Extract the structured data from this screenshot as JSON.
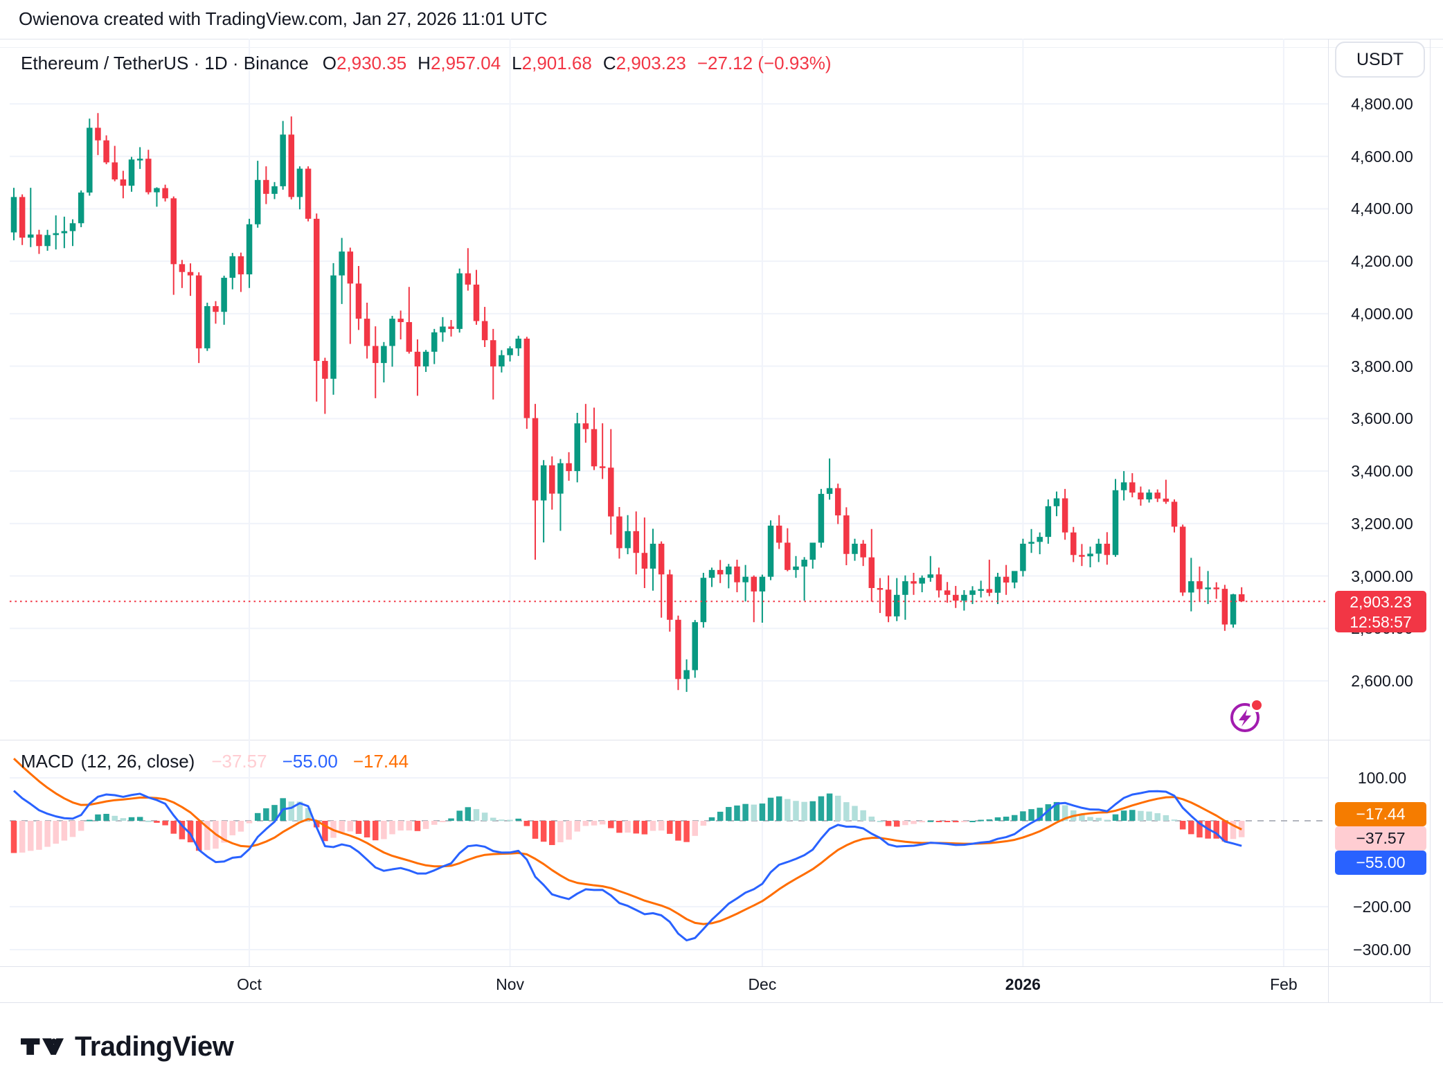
{
  "attribution": "Owienova created with TradingView.com, Jan 27, 2026 11:01 UTC",
  "legend": {
    "symbol": "Ethereum / TetherUS · 1D · Binance",
    "o_label": "O",
    "o": "2,930.35",
    "h_label": "H",
    "h": "2,957.04",
    "l_label": "L",
    "l": "2,901.68",
    "c_label": "C",
    "c": "2,903.23",
    "change": "−27.12 (−0.93%)"
  },
  "price_scale_button": "USDT",
  "price_axis": {
    "tick_labels": [
      "4,800.00",
      "4,600.00",
      "4,400.00",
      "4,200.00",
      "4,000.00",
      "3,800.00",
      "3,600.00",
      "3,400.00",
      "3,200.00",
      "3,000.00",
      "2,800.00",
      "2,600.00"
    ],
    "tick_values": [
      4800,
      4600,
      4400,
      4200,
      4000,
      3800,
      3600,
      3400,
      3200,
      3000,
      2800,
      2600
    ],
    "current_tag": {
      "price": "2,903.23",
      "countdown": "12:58:57",
      "value": 2903.23
    }
  },
  "macd_panel": {
    "title": "MACD",
    "params": "(12, 26, close)",
    "histogram_value": "−37.57",
    "macd_value": "−55.00",
    "signal_value": "−17.44",
    "axis": [
      {
        "label": "100.00",
        "value": 100
      },
      {
        "label": "−200.00",
        "value": -200
      },
      {
        "label": "−300.00",
        "value": -300
      }
    ],
    "tags": [
      {
        "label": "−17.44",
        "bg": "#F57C00",
        "fg": "#FFFFFF"
      },
      {
        "label": "−37.57",
        "bg": "#FFCDD2",
        "fg": "#131722"
      },
      {
        "label": "−55.00",
        "bg": "#2962FF",
        "fg": "#FFFFFF"
      }
    ]
  },
  "time_axis": {
    "labels": [
      {
        "text": "Oct",
        "index": 28,
        "bold": false
      },
      {
        "text": "Nov",
        "index": 59,
        "bold": false
      },
      {
        "text": "Dec",
        "index": 89,
        "bold": false
      },
      {
        "text": "2026",
        "index": 120,
        "bold": true
      },
      {
        "text": "Feb",
        "index": 151,
        "bold": false
      }
    ]
  },
  "branding": {
    "wordmark": "TradingView"
  },
  "colors": {
    "up": "#089981",
    "down": "#F23645",
    "macd_line": "#2962FF",
    "signal_line": "#FF6D00",
    "hist_up": "#26A69A",
    "hist_up_fade": "#B2DFDB",
    "hist_down": "#FF5252",
    "hist_down_fade": "#FFCDD2",
    "grid": "#F0F3FA",
    "border": "#E0E3EB",
    "text": "#131722",
    "price_line": "#F23645",
    "zero_line": "#B2B5BE",
    "flash_purple": "#A21CAF"
  },
  "chart_data": {
    "type": "candlestick",
    "title": "Ethereum / TetherUS · 1D · Binance",
    "symbol": "ETHUSDT",
    "interval": "1D",
    "start_date": "2025-09-03",
    "end_date": "2026-01-27",
    "price_ylim": [
      2380,
      5050
    ],
    "grid": true,
    "candles_ohlc": [
      [
        4310,
        4480,
        4280,
        4445
      ],
      [
        4445,
        4455,
        4262,
        4290
      ],
      [
        4290,
        4480,
        4254,
        4302
      ],
      [
        4302,
        4320,
        4228,
        4258
      ],
      [
        4258,
        4320,
        4240,
        4300
      ],
      [
        4300,
        4375,
        4245,
        4307
      ],
      [
        4307,
        4370,
        4250,
        4315
      ],
      [
        4315,
        4360,
        4258,
        4345
      ],
      [
        4345,
        4470,
        4330,
        4462
      ],
      [
        4462,
        4744,
        4450,
        4709
      ],
      [
        4709,
        4765,
        4605,
        4661
      ],
      [
        4661,
        4680,
        4570,
        4577
      ],
      [
        4577,
        4640,
        4505,
        4512
      ],
      [
        4512,
        4545,
        4440,
        4488
      ],
      [
        4488,
        4598,
        4465,
        4588
      ],
      [
        4588,
        4635,
        4552,
        4591
      ],
      [
        4591,
        4625,
        4455,
        4463
      ],
      [
        4463,
        4482,
        4408,
        4479
      ],
      [
        4479,
        4492,
        4428,
        4440
      ],
      [
        4440,
        4447,
        4072,
        4189
      ],
      [
        4189,
        4205,
        4098,
        4159
      ],
      [
        4159,
        4192,
        4068,
        4146
      ],
      [
        4146,
        4158,
        3812,
        3868
      ],
      [
        3868,
        4042,
        3858,
        4029
      ],
      [
        4029,
        4048,
        3962,
        4007
      ],
      [
        4007,
        4145,
        3958,
        4137
      ],
      [
        4137,
        4232,
        4093,
        4219
      ],
      [
        4219,
        4233,
        4083,
        4150
      ],
      [
        4150,
        4362,
        4098,
        4341
      ],
      [
        4341,
        4583,
        4328,
        4510
      ],
      [
        4510,
        4562,
        4418,
        4457
      ],
      [
        4457,
        4502,
        4437,
        4486
      ],
      [
        4486,
        4735,
        4473,
        4683
      ],
      [
        4683,
        4752,
        4436,
        4445
      ],
      [
        4445,
        4562,
        4398,
        4553
      ],
      [
        4553,
        4562,
        4352,
        4362
      ],
      [
        4362,
        4382,
        3665,
        3820
      ],
      [
        3820,
        3832,
        3618,
        3752
      ],
      [
        3752,
        4193,
        3691,
        4146
      ],
      [
        4146,
        4289,
        4037,
        4237
      ],
      [
        4237,
        4252,
        3885,
        4115
      ],
      [
        4115,
        4182,
        3938,
        3981
      ],
      [
        3981,
        4042,
        3829,
        3877
      ],
      [
        3877,
        3952,
        3678,
        3812
      ],
      [
        3812,
        3892,
        3738,
        3877
      ],
      [
        3877,
        3992,
        3798,
        3981
      ],
      [
        3981,
        4012,
        3902,
        3968
      ],
      [
        3968,
        4102,
        3848,
        3855
      ],
      [
        3855,
        3902,
        3687,
        3799
      ],
      [
        3799,
        3862,
        3778,
        3855
      ],
      [
        3855,
        3942,
        3808,
        3929
      ],
      [
        3929,
        3987,
        3893,
        3951
      ],
      [
        3951,
        3976,
        3913,
        3942
      ],
      [
        3942,
        4172,
        3928,
        4154
      ],
      [
        4154,
        4250,
        4088,
        4111
      ],
      [
        4111,
        4167,
        3958,
        3972
      ],
      [
        3972,
        4026,
        3873,
        3899
      ],
      [
        3899,
        3942,
        3673,
        3799
      ],
      [
        3799,
        3861,
        3776,
        3842
      ],
      [
        3842,
        3876,
        3818,
        3868
      ],
      [
        3868,
        3916,
        3839,
        3905
      ],
      [
        3905,
        3912,
        3561,
        3602
      ],
      [
        3602,
        3656,
        3062,
        3288
      ],
      [
        3288,
        3442,
        3128,
        3422
      ],
      [
        3422,
        3456,
        3253,
        3314
      ],
      [
        3314,
        3446,
        3172,
        3430
      ],
      [
        3430,
        3472,
        3363,
        3400
      ],
      [
        3400,
        3622,
        3357,
        3582
      ],
      [
        3582,
        3656,
        3508,
        3560
      ],
      [
        3560,
        3642,
        3404,
        3418
      ],
      [
        3418,
        3582,
        3370,
        3413
      ],
      [
        3413,
        3560,
        3158,
        3227
      ],
      [
        3227,
        3263,
        3066,
        3106
      ],
      [
        3106,
        3232,
        3083,
        3171
      ],
      [
        3171,
        3246,
        3006,
        3088
      ],
      [
        3088,
        3223,
        2954,
        3028
      ],
      [
        3028,
        3180,
        2944,
        3123
      ],
      [
        3123,
        3132,
        2841,
        3006
      ],
      [
        3006,
        3024,
        2788,
        2833
      ],
      [
        2833,
        2849,
        2565,
        2607
      ],
      [
        2607,
        2682,
        2558,
        2641
      ],
      [
        2641,
        2832,
        2612,
        2824
      ],
      [
        2824,
        3012,
        2803,
        2993
      ],
      [
        2993,
        3032,
        2958,
        3023
      ],
      [
        3023,
        3061,
        2973,
        3006
      ],
      [
        3006,
        3046,
        2953,
        3036
      ],
      [
        3036,
        3062,
        2938,
        2976
      ],
      [
        2976,
        3042,
        2903,
        2997
      ],
      [
        2997,
        3002,
        2824,
        2941
      ],
      [
        2941,
        3005,
        2822,
        2997
      ],
      [
        2997,
        3212,
        2984,
        3192
      ],
      [
        3192,
        3232,
        3103,
        3127
      ],
      [
        3127,
        3182,
        3018,
        3023
      ],
      [
        3023,
        3076,
        2993,
        3036
      ],
      [
        3036,
        3072,
        2906,
        3062
      ],
      [
        3062,
        3087,
        3028,
        3127
      ],
      [
        3127,
        3332,
        3108,
        3313
      ],
      [
        3313,
        3448,
        3291,
        3335
      ],
      [
        3335,
        3352,
        3198,
        3231
      ],
      [
        3231,
        3262,
        3041,
        3084
      ],
      [
        3084,
        3142,
        3058,
        3123
      ],
      [
        3123,
        3137,
        3038,
        3071
      ],
      [
        3071,
        3179,
        2902,
        2954
      ],
      [
        2954,
        2992,
        2859,
        2948
      ],
      [
        2948,
        3002,
        2824,
        2846
      ],
      [
        2846,
        2992,
        2828,
        2928
      ],
      [
        2928,
        3002,
        2833,
        2980
      ],
      [
        2980,
        3012,
        2928,
        2971
      ],
      [
        2971,
        3002,
        2938,
        2993
      ],
      [
        2993,
        3076,
        2978,
        3006
      ],
      [
        3006,
        3032,
        2918,
        2945
      ],
      [
        2945,
        2977,
        2898,
        2928
      ],
      [
        2928,
        2962,
        2878,
        2906
      ],
      [
        2906,
        2946,
        2868,
        2928
      ],
      [
        2928,
        2961,
        2893,
        2945
      ],
      [
        2945,
        2982,
        2918,
        2950
      ],
      [
        2950,
        3062,
        2923,
        2936
      ],
      [
        2936,
        3012,
        2893,
        2997
      ],
      [
        2997,
        3042,
        2928,
        2975
      ],
      [
        2975,
        3017,
        2953,
        3019
      ],
      [
        3019,
        3142,
        2998,
        3123
      ],
      [
        3123,
        3179,
        3088,
        3130
      ],
      [
        3130,
        3166,
        3083,
        3149
      ],
      [
        3149,
        3292,
        3123,
        3266
      ],
      [
        3266,
        3322,
        3228,
        3296
      ],
      [
        3296,
        3332,
        3138,
        3166
      ],
      [
        3166,
        3187,
        3053,
        3080
      ],
      [
        3080,
        3122,
        3038,
        3075
      ],
      [
        3075,
        3112,
        3033,
        3085
      ],
      [
        3085,
        3142,
        3053,
        3123
      ],
      [
        3123,
        3167,
        3043,
        3080
      ],
      [
        3080,
        3370,
        3073,
        3327
      ],
      [
        3327,
        3400,
        3288,
        3357
      ],
      [
        3357,
        3392,
        3300,
        3318
      ],
      [
        3318,
        3341,
        3268,
        3292
      ],
      [
        3292,
        3330,
        3280,
        3318
      ],
      [
        3318,
        3330,
        3282,
        3295
      ],
      [
        3295,
        3367,
        3275,
        3283
      ],
      [
        3283,
        3292,
        3166,
        3188
      ],
      [
        3188,
        3196,
        2924,
        2937
      ],
      [
        2937,
        3069,
        2865,
        2980
      ],
      [
        2980,
        3036,
        2902,
        2950
      ],
      [
        2950,
        3019,
        2893,
        2956
      ],
      [
        2956,
        2976,
        2913,
        2951
      ],
      [
        2951,
        2966,
        2791,
        2815
      ],
      [
        2815,
        2932,
        2803,
        2930
      ],
      [
        2930.35,
        2957.04,
        2901.68,
        2903.23
      ]
    ],
    "indicator": {
      "name": "MACD",
      "fast": 12,
      "slow": 26,
      "signal": 9,
      "source": "close",
      "seed_macd": 70,
      "seed_signal": 145,
      "axis_range": [
        -300,
        100
      ],
      "last_values": {
        "macd": -55.0,
        "signal": -17.44,
        "histogram": -37.57
      }
    },
    "current_price": 2903.23
  }
}
